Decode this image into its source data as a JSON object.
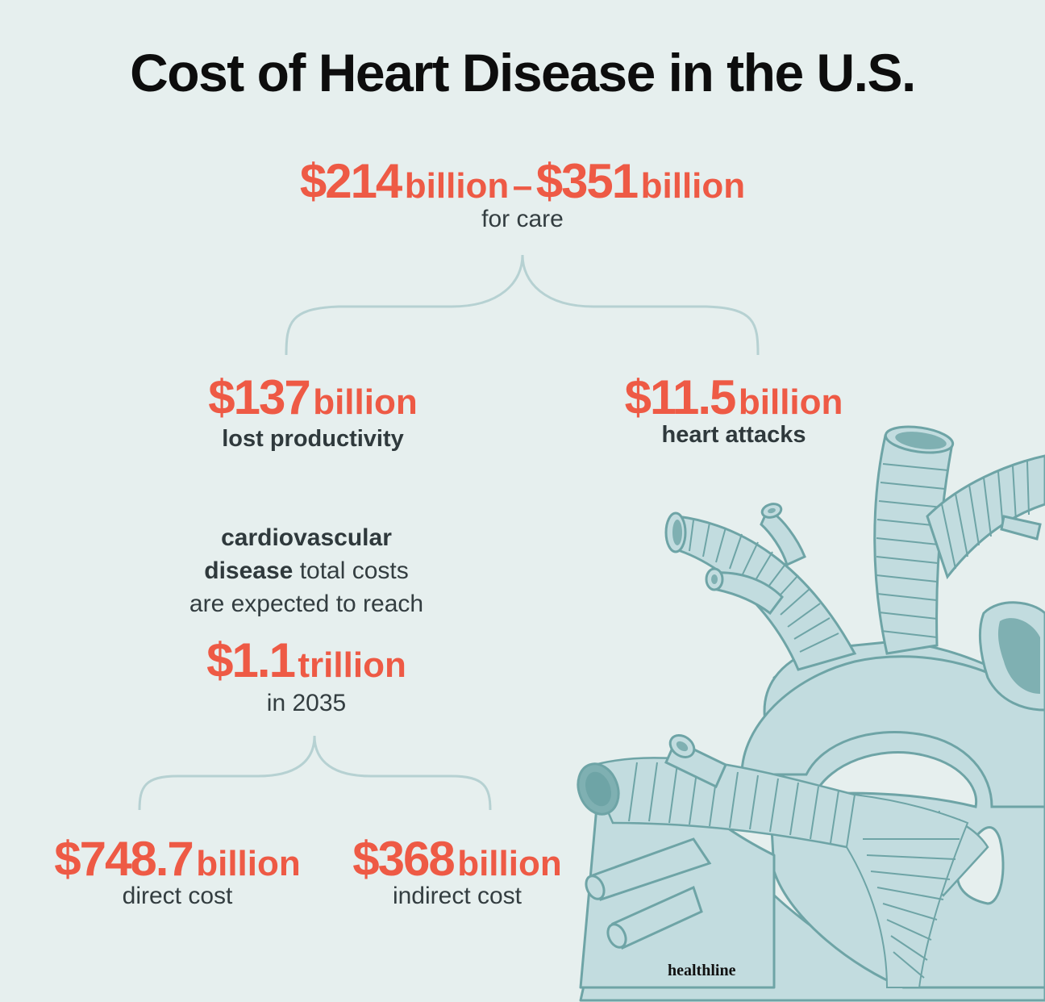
{
  "title": "Cost of Heart Disease in the U.S.",
  "care": {
    "low_amount": "$214",
    "low_unit": "billion",
    "separator": "–",
    "high_amount": "$351",
    "high_unit": "billion",
    "label": "for care"
  },
  "productivity": {
    "amount": "$137",
    "unit": "billion",
    "label": "lost productivity"
  },
  "heart_attacks": {
    "amount": "$11.5",
    "unit": "billion",
    "label": "heart attacks"
  },
  "projection": {
    "bold1": "cardiovascular",
    "bold2": "disease",
    "text1": "total costs",
    "text2": "are expected to reach",
    "amount": "$1.1",
    "unit": "trillion",
    "label": "in 2035"
  },
  "direct": {
    "amount": "$748.7",
    "unit": "billion",
    "label": "direct cost"
  },
  "indirect": {
    "amount": "$368",
    "unit": "billion",
    "label": "indirect cost"
  },
  "brand": "healthline",
  "colors": {
    "background": "#e6efee",
    "accent": "#ee5a45",
    "heart_fill": "#c2dcdf",
    "heart_stroke": "#6ea4a6",
    "heart_dark": "#7fb0b2"
  }
}
